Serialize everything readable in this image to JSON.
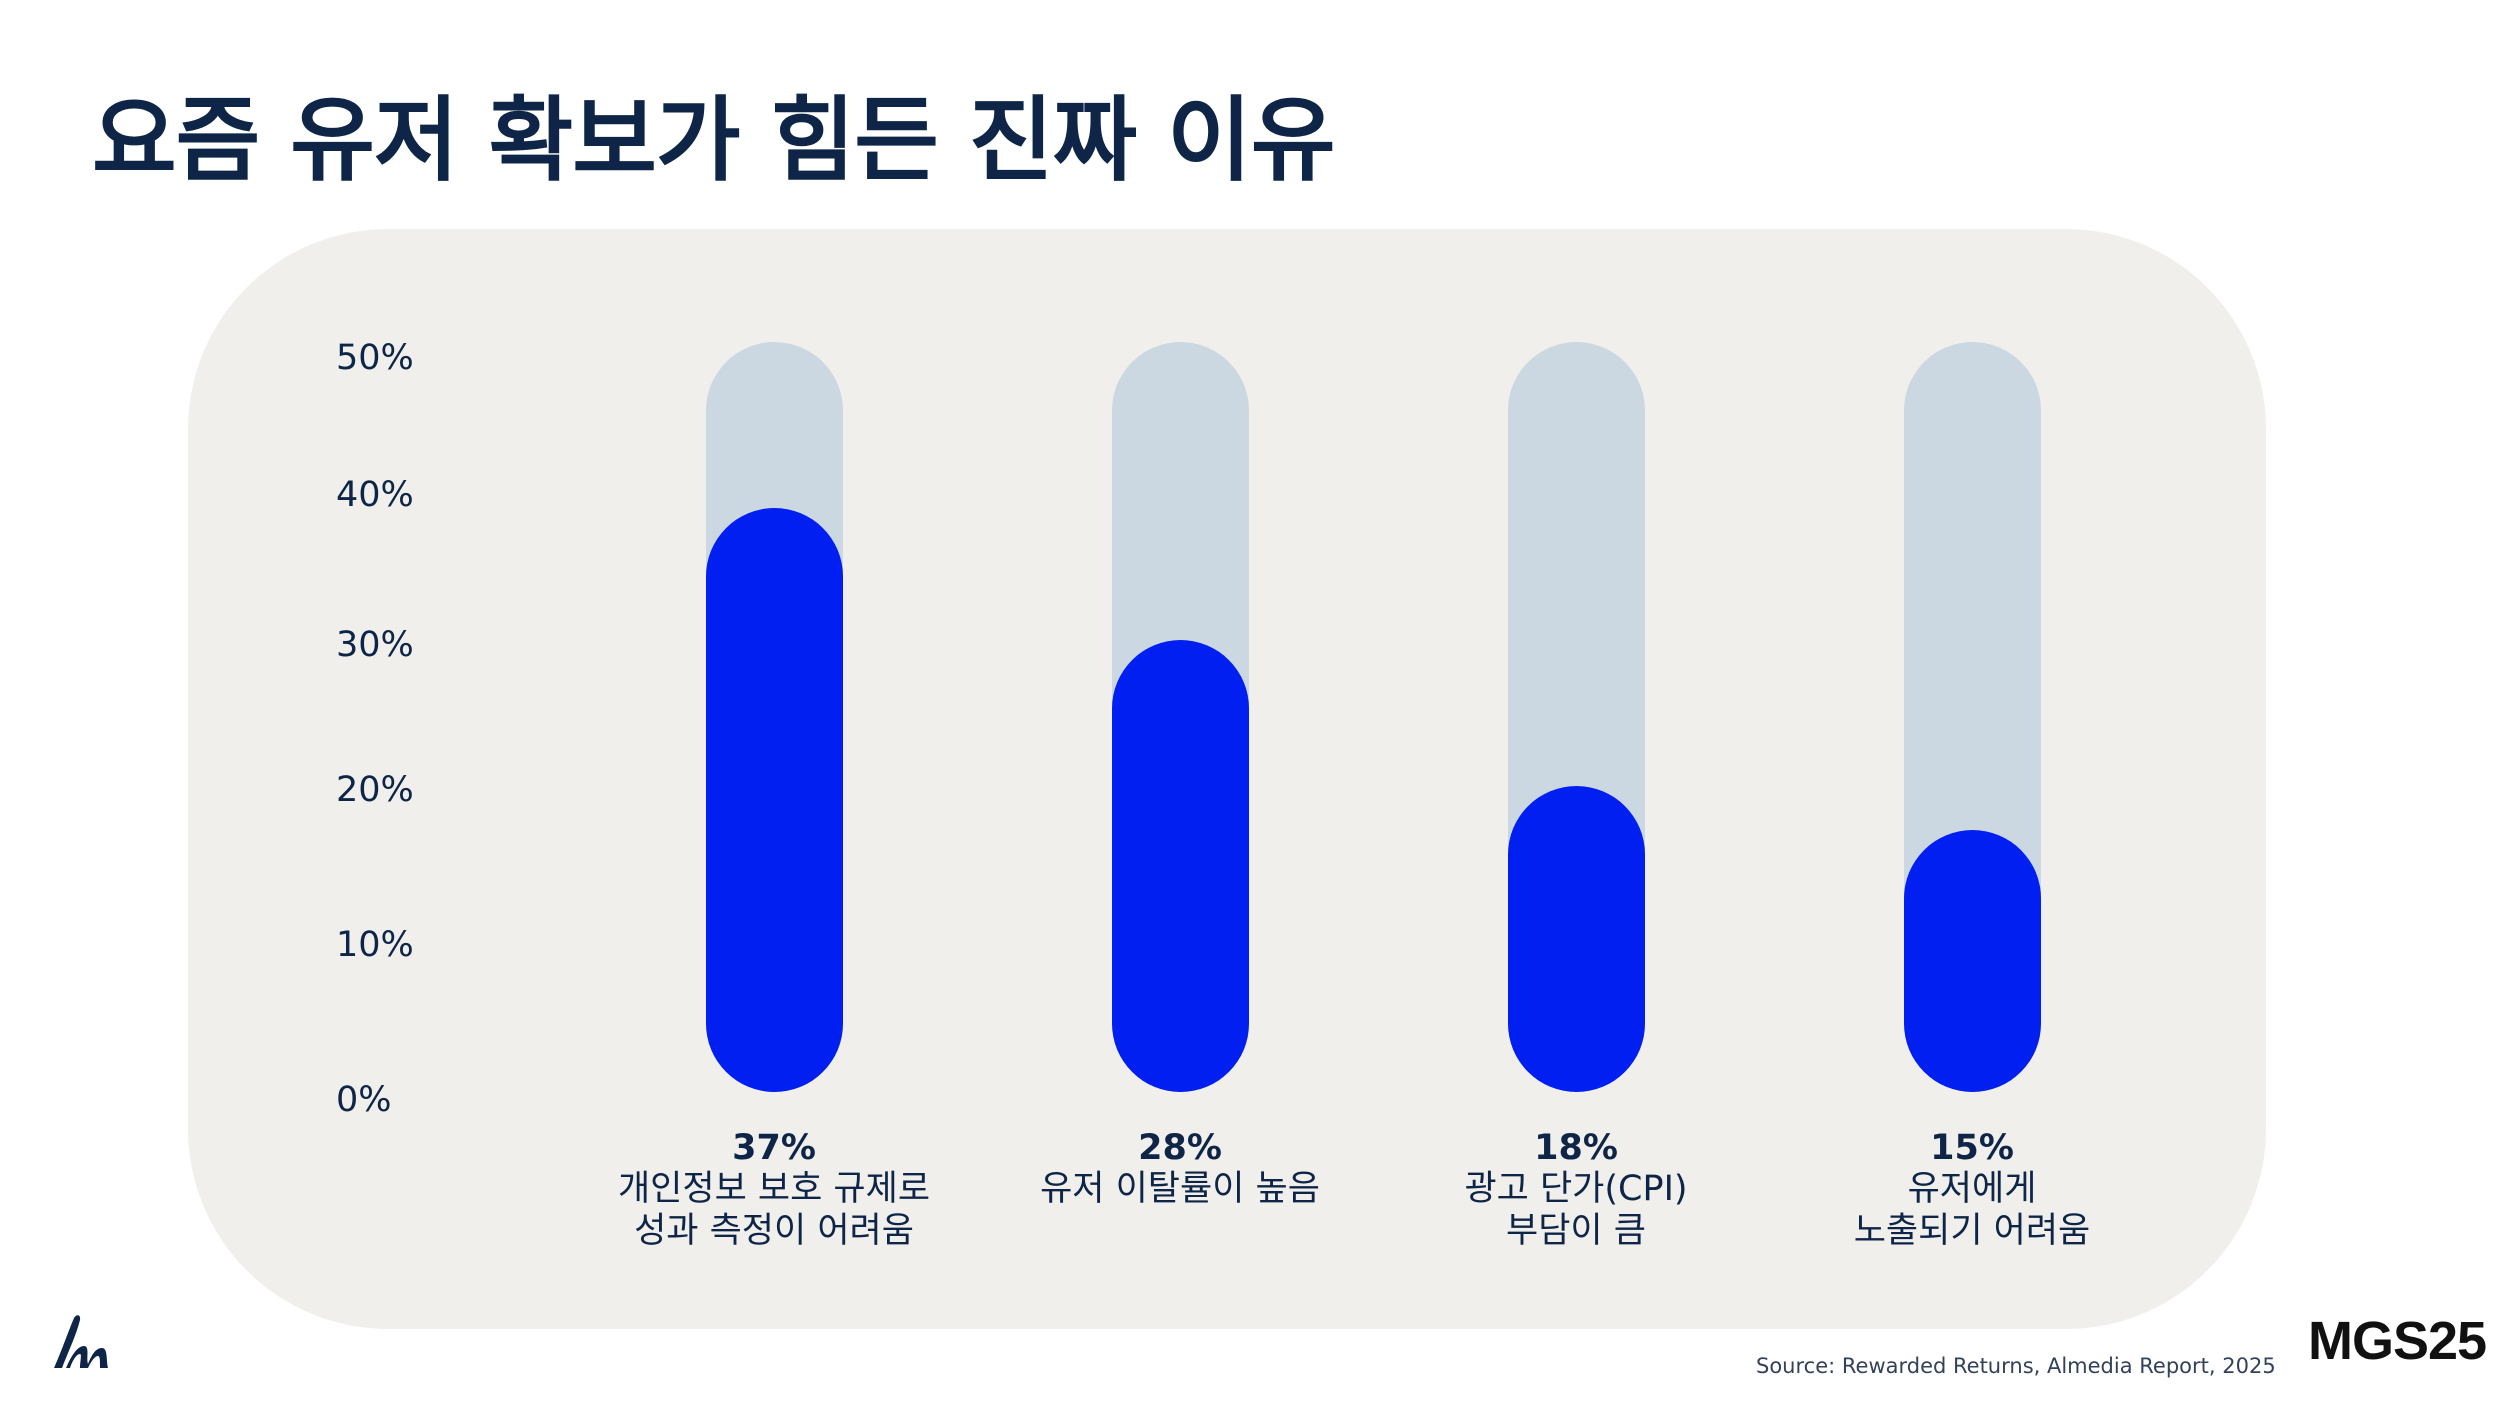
{
  "title": "요즘 유저 확보가 힘든 진짜 이유",
  "chart_data": {
    "type": "bar",
    "orientation": "vertical",
    "ylim": [
      0,
      50
    ],
    "yticks": [
      "0%",
      "10%",
      "20%",
      "30%",
      "40%",
      "50%"
    ],
    "grid": false,
    "categories": [
      "개인정보 보호 규제로\n성과 측정이 어려움",
      "유저 이탈률이 높음",
      "광고 단가(CPI)\n부담이 큼",
      "유저에게\n노출되기 어려움"
    ],
    "values": [
      37,
      28,
      18,
      15
    ],
    "value_labels": [
      "37%",
      "28%",
      "18%",
      "15%"
    ],
    "colors": {
      "bar": "#001ff0",
      "track": "#cbd7e1",
      "panel": "#f0efeb",
      "text": "#0e2547"
    }
  },
  "source": "Source: Rewarded Returns, Almedia Report, 2025",
  "brand": "MGS25",
  "logo_icon": "mgs-script-logo-icon"
}
